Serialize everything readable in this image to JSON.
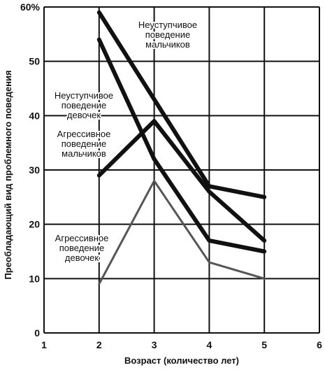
{
  "chart_data": {
    "type": "line",
    "xlabel": "Возраст (количество лет)",
    "ylabel": "Преобладающий вид проблемного поведения",
    "xlim": [
      1,
      6
    ],
    "ylim": [
      0,
      60
    ],
    "x_ticks": [
      "1",
      "2",
      "3",
      "4",
      "5",
      "6"
    ],
    "y_ticks": [
      "0",
      "10",
      "20",
      "30",
      "40",
      "50",
      "60%"
    ],
    "grid": true,
    "series": [
      {
        "name": "Неуступчивое поведение мальчиков",
        "label_lines": [
          "Неуступчивое",
          "поведение",
          "мальчиков"
        ],
        "x": [
          2,
          3,
          4,
          5
        ],
        "values": [
          59,
          43,
          27,
          25
        ],
        "color": "#111111",
        "width": 6
      },
      {
        "name": "Неуступчивое поведение девочек",
        "label_lines": [
          "Неуступчивое",
          "поведение",
          "девочек"
        ],
        "x": [
          2,
          3,
          4,
          5
        ],
        "values": [
          54,
          32,
          17,
          15
        ],
        "color": "#111111",
        "width": 6
      },
      {
        "name": "Агрессивное поведение мальчиков",
        "label_lines": [
          "Агрессивное",
          "поведение",
          "мальчиков"
        ],
        "x": [
          2,
          3,
          4,
          5
        ],
        "values": [
          29,
          39,
          26,
          17
        ],
        "color": "#111111",
        "width": 6
      },
      {
        "name": "Агрессивное поведение девочек",
        "label_lines": [
          "Агрессивное",
          "поведение",
          "девочек"
        ],
        "x": [
          2,
          3,
          4,
          5
        ],
        "values": [
          9,
          28,
          13,
          10
        ],
        "color": "#555555",
        "width": 3
      }
    ]
  }
}
